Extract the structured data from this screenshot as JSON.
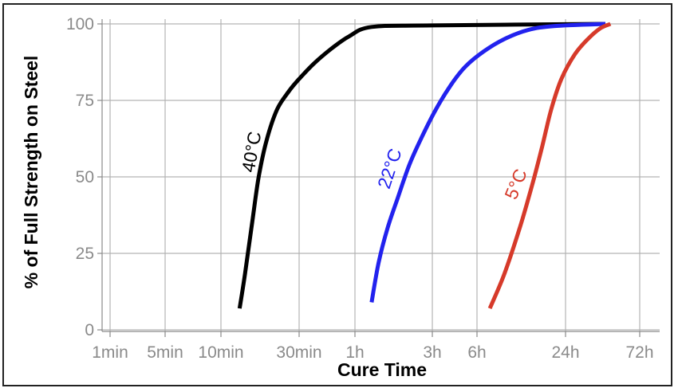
{
  "chart_data": {
    "type": "line",
    "title": "",
    "xlabel": "Cure Time",
    "ylabel": "% of Full Strength on Steel",
    "x_scale": "log",
    "x_ticks": [
      {
        "label": "1min",
        "minutes": 1
      },
      {
        "label": "5min",
        "minutes": 5
      },
      {
        "label": "10min",
        "minutes": 10
      },
      {
        "label": "30min",
        "minutes": 30
      },
      {
        "label": "1h",
        "minutes": 60
      },
      {
        "label": "3h",
        "minutes": 180
      },
      {
        "label": "6h",
        "minutes": 360
      },
      {
        "label": "24h",
        "minutes": 1440
      },
      {
        "label": "72h",
        "minutes": 4320
      }
    ],
    "y_ticks": [
      0,
      25,
      50,
      75,
      100
    ],
    "ylim": [
      0,
      100
    ],
    "grid": true,
    "legend": "none",
    "series": [
      {
        "name": "40°C",
        "color": "#000000",
        "points": [
          [
            13,
            7
          ],
          [
            14,
            18
          ],
          [
            15.5,
            35
          ],
          [
            17,
            50
          ],
          [
            19,
            62
          ],
          [
            22,
            72
          ],
          [
            26,
            78
          ],
          [
            30,
            82
          ],
          [
            36,
            87
          ],
          [
            45,
            92
          ],
          [
            56,
            96
          ],
          [
            76,
            99
          ],
          [
            180,
            99.5
          ],
          [
            2600,
            100
          ]
        ]
      },
      {
        "name": "22°C",
        "color": "#2222ee",
        "points": [
          [
            76,
            9
          ],
          [
            84,
            22
          ],
          [
            95,
            33
          ],
          [
            110,
            43
          ],
          [
            130,
            54
          ],
          [
            155,
            63
          ],
          [
            190,
            72
          ],
          [
            240,
            80
          ],
          [
            300,
            86
          ],
          [
            400,
            91
          ],
          [
            550,
            95
          ],
          [
            800,
            98
          ],
          [
            1200,
            99.3
          ],
          [
            2600,
            100
          ]
        ]
      },
      {
        "name": "5°C",
        "color": "#d63a2a",
        "points": [
          [
            440,
            7
          ],
          [
            550,
            18
          ],
          [
            700,
            33
          ],
          [
            850,
            47
          ],
          [
            1000,
            60
          ],
          [
            1150,
            72
          ],
          [
            1350,
            82
          ],
          [
            1650,
            90
          ],
          [
            2000,
            95
          ],
          [
            2400,
            98.5
          ],
          [
            2800,
            100
          ]
        ]
      }
    ]
  }
}
